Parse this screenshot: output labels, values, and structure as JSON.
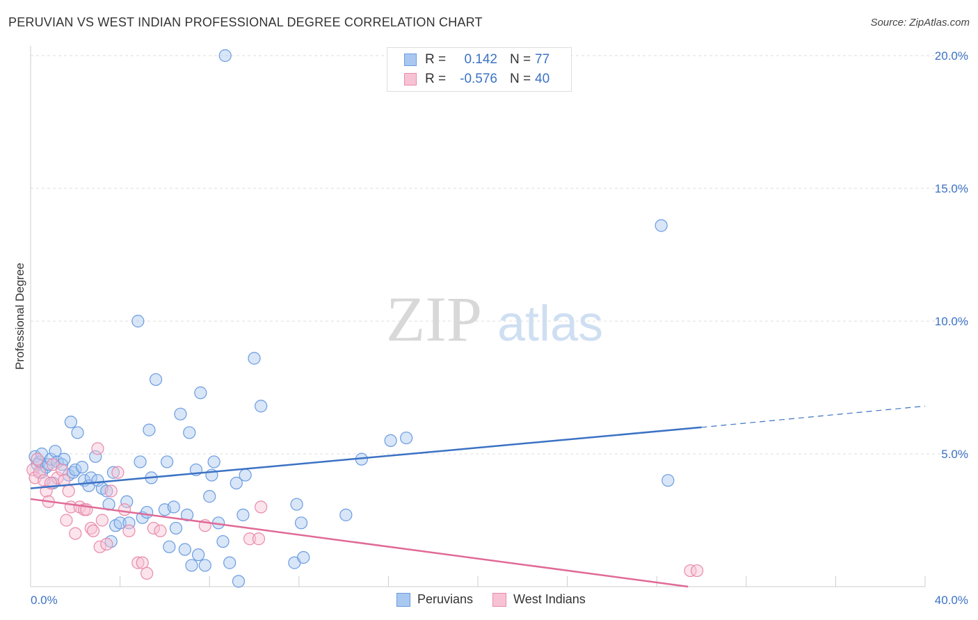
{
  "header": {
    "title": "PERUVIAN VS WEST INDIAN PROFESSIONAL DEGREE CORRELATION CHART",
    "source": "Source: ZipAtlas.com"
  },
  "watermark": {
    "zip": "ZIP",
    "atlas": "atlas"
  },
  "legend": {
    "rows": [
      {
        "r_label": "R =",
        "r_value": "0.142",
        "n_label": "N =",
        "n_value": "77",
        "color": "#a9c8f0",
        "border": "#6a9be0"
      },
      {
        "r_label": "R =",
        "r_value": "-0.576",
        "n_label": "N =",
        "n_value": "40",
        "color": "#f7c3d4",
        "border": "#e88aab"
      }
    ]
  },
  "bottom_legend": [
    {
      "label": "Peruvians",
      "color": "#a9c8f0",
      "border": "#6a9be0"
    },
    {
      "label": "West Indians",
      "color": "#f7c3d4",
      "border": "#e88aab"
    }
  ],
  "chart_data": {
    "type": "scatter",
    "ylabel": "Professional Degree",
    "xlabel": "",
    "xlim": [
      0,
      40
    ],
    "ylim": [
      0,
      20
    ],
    "x_tick_labels": [
      {
        "v": 0,
        "label": "0.0%"
      },
      {
        "v": 40,
        "label": "40.0%"
      }
    ],
    "y_tick_labels": [
      {
        "v": 5,
        "label": "5.0%"
      },
      {
        "v": 10,
        "label": "10.0%"
      },
      {
        "v": 15,
        "label": "15.0%"
      },
      {
        "v": 20,
        "label": "20.0%"
      }
    ],
    "grid": true,
    "colors": {
      "peruvians": "#3b72c4",
      "peruvians_fill": "#a9c8f0",
      "west_indians": "#e06a96",
      "west_indians_fill": "#f7c3d4"
    },
    "series": [
      {
        "name": "Peruvians",
        "points": [
          [
            0.2,
            4.9
          ],
          [
            0.3,
            4.6
          ],
          [
            0.4,
            4.7
          ],
          [
            0.5,
            5.0
          ],
          [
            0.5,
            4.3
          ],
          [
            0.7,
            4.5
          ],
          [
            0.8,
            4.6
          ],
          [
            0.9,
            4.8
          ],
          [
            1.0,
            3.9
          ],
          [
            1.1,
            5.1
          ],
          [
            1.2,
            4.7
          ],
          [
            1.4,
            4.6
          ],
          [
            1.5,
            4.8
          ],
          [
            1.7,
            4.2
          ],
          [
            1.8,
            6.2
          ],
          [
            1.9,
            4.3
          ],
          [
            2.0,
            4.4
          ],
          [
            2.1,
            5.8
          ],
          [
            2.3,
            4.5
          ],
          [
            2.4,
            4.0
          ],
          [
            2.6,
            3.8
          ],
          [
            2.7,
            4.1
          ],
          [
            2.9,
            4.9
          ],
          [
            3.0,
            4.0
          ],
          [
            3.2,
            3.7
          ],
          [
            3.4,
            3.6
          ],
          [
            3.5,
            3.1
          ],
          [
            3.6,
            1.7
          ],
          [
            3.7,
            4.3
          ],
          [
            3.8,
            2.3
          ],
          [
            4.0,
            2.4
          ],
          [
            4.3,
            3.2
          ],
          [
            4.4,
            2.4
          ],
          [
            4.8,
            10.0
          ],
          [
            4.9,
            4.7
          ],
          [
            5.0,
            2.6
          ],
          [
            5.2,
            2.8
          ],
          [
            5.3,
            5.9
          ],
          [
            5.4,
            4.1
          ],
          [
            5.6,
            7.8
          ],
          [
            6.0,
            2.9
          ],
          [
            6.1,
            4.7
          ],
          [
            6.2,
            1.5
          ],
          [
            6.4,
            3.0
          ],
          [
            6.5,
            2.2
          ],
          [
            6.7,
            6.5
          ],
          [
            6.9,
            1.4
          ],
          [
            7.0,
            2.7
          ],
          [
            7.1,
            5.8
          ],
          [
            7.2,
            0.8
          ],
          [
            7.4,
            4.4
          ],
          [
            7.5,
            1.2
          ],
          [
            7.6,
            7.3
          ],
          [
            7.8,
            0.8
          ],
          [
            8.0,
            3.4
          ],
          [
            8.1,
            4.2
          ],
          [
            8.2,
            4.7
          ],
          [
            8.4,
            2.4
          ],
          [
            8.6,
            1.7
          ],
          [
            8.7,
            20.0
          ],
          [
            8.9,
            0.9
          ],
          [
            9.2,
            3.9
          ],
          [
            9.3,
            0.2
          ],
          [
            9.5,
            2.7
          ],
          [
            9.6,
            4.2
          ],
          [
            10.0,
            8.6
          ],
          [
            10.3,
            6.8
          ],
          [
            11.8,
            0.9
          ],
          [
            11.9,
            3.1
          ],
          [
            12.1,
            2.4
          ],
          [
            12.2,
            1.1
          ],
          [
            14.1,
            2.7
          ],
          [
            14.8,
            4.8
          ],
          [
            16.1,
            5.5
          ],
          [
            16.8,
            5.6
          ],
          [
            28.2,
            13.6
          ],
          [
            28.5,
            4.0
          ]
        ]
      },
      {
        "name": "West Indians",
        "points": [
          [
            0.1,
            4.4
          ],
          [
            0.2,
            4.1
          ],
          [
            0.3,
            4.8
          ],
          [
            0.4,
            4.3
          ],
          [
            0.6,
            4.0
          ],
          [
            0.7,
            3.6
          ],
          [
            0.8,
            3.2
          ],
          [
            1.0,
            4.6
          ],
          [
            1.2,
            4.1
          ],
          [
            1.4,
            4.4
          ],
          [
            1.5,
            4.0
          ],
          [
            1.6,
            2.5
          ],
          [
            1.7,
            3.6
          ],
          [
            1.8,
            3.0
          ],
          [
            2.0,
            2.0
          ],
          [
            2.2,
            3.0
          ],
          [
            2.4,
            2.9
          ],
          [
            2.5,
            2.9
          ],
          [
            2.7,
            2.2
          ],
          [
            2.8,
            2.1
          ],
          [
            3.0,
            5.2
          ],
          [
            3.1,
            1.5
          ],
          [
            3.2,
            2.5
          ],
          [
            3.4,
            1.6
          ],
          [
            3.6,
            3.6
          ],
          [
            3.9,
            4.3
          ],
          [
            4.2,
            2.9
          ],
          [
            4.4,
            2.1
          ],
          [
            4.8,
            0.9
          ],
          [
            5.0,
            0.9
          ],
          [
            5.2,
            0.5
          ],
          [
            5.5,
            2.2
          ],
          [
            5.8,
            2.1
          ],
          [
            7.8,
            2.3
          ],
          [
            9.8,
            1.8
          ],
          [
            10.2,
            1.8
          ],
          [
            10.3,
            3.0
          ],
          [
            29.5,
            0.6
          ],
          [
            29.8,
            0.6
          ],
          [
            0.9,
            3.9
          ]
        ]
      }
    ],
    "trendlines": [
      {
        "series": "Peruvians",
        "from": [
          0,
          3.7
        ],
        "to": [
          30,
          6.0
        ],
        "dashed_to": [
          40,
          6.8
        ]
      },
      {
        "series": "West Indians",
        "from": [
          0,
          3.3
        ],
        "to": [
          29.4,
          0.0
        ]
      }
    ]
  }
}
